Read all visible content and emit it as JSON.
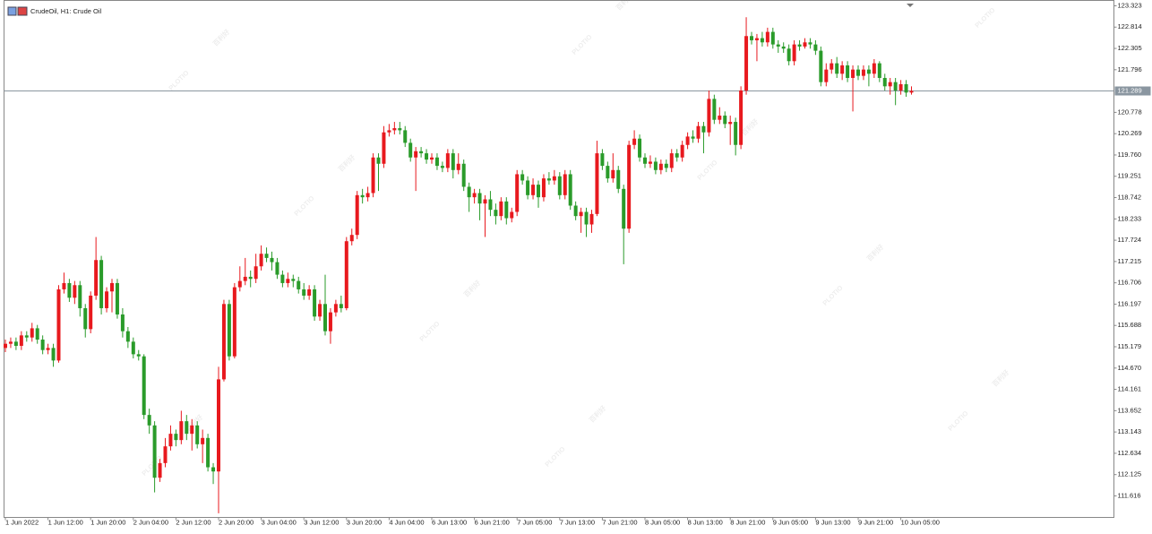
{
  "chart_data": {
    "type": "candlestick",
    "title": "CrudeOil, H1:  Crude Oil",
    "watermark": [
      "PLOTIO",
      "百利好"
    ],
    "x": [
      "1 Jun 2022",
      null,
      null,
      null,
      null,
      null,
      null,
      null,
      "1 Jun 12:00",
      null,
      null,
      null,
      null,
      null,
      null,
      null,
      "1 Jun 20:00",
      null,
      null,
      null,
      null,
      null,
      null,
      null,
      "2 Jun 04:00",
      null,
      null,
      null,
      null,
      null,
      null,
      null,
      "2 Jun 12:00",
      null,
      null,
      null,
      null,
      null,
      null,
      null,
      "2 Jun 20:00",
      null,
      null,
      null,
      null,
      null,
      null,
      null,
      "3 Jun 04:00",
      null,
      null,
      null,
      null,
      null,
      null,
      null,
      "3 Jun 12:00",
      null,
      null,
      null,
      null,
      null,
      null,
      null,
      "3 Jun 20:00",
      null,
      null,
      null,
      null,
      null,
      null,
      null,
      "4 Jun 04:00",
      null,
      null,
      null,
      null,
      null,
      null,
      null,
      "6 Jun 13:00",
      null,
      null,
      null,
      null,
      null,
      null,
      null,
      "6 Jun 21:00",
      null,
      null,
      null,
      null,
      null,
      null,
      null,
      "7 Jun 05:00",
      null,
      null,
      null,
      null,
      null,
      null,
      null,
      "7 Jun 13:00",
      null,
      null,
      null,
      null,
      null,
      null,
      null,
      "7 Jun 21:00",
      null,
      null,
      null,
      null,
      null,
      null,
      null,
      "8 Jun 05:00",
      null,
      null,
      null,
      null,
      null,
      null,
      null,
      "8 Jun 13:00",
      null,
      null,
      null,
      null,
      null,
      null,
      null,
      "8 Jun 21:00",
      null,
      null,
      null,
      null,
      null,
      null,
      null,
      "9 Jun 05:00",
      null,
      null,
      null,
      null,
      null,
      null,
      null,
      "9 Jun 13:00",
      null,
      null,
      null,
      null,
      null,
      null,
      null,
      "9 Jun 21:00",
      null,
      null,
      null,
      null,
      null,
      null,
      null,
      "10 Jun 05:00",
      null,
      null
    ],
    "open": [
      115.15,
      115.25,
      115.3,
      115.2,
      115.45,
      115.4,
      115.62,
      115.35,
      115.1,
      115.15,
      114.85,
      116.55,
      116.7,
      116.35,
      116.65,
      116.1,
      115.6,
      116.4,
      117.25,
      116.1,
      116.5,
      116.7,
      115.95,
      115.55,
      115.3,
      115.0,
      114.95,
      113.55,
      113.3,
      112.05,
      112.4,
      112.8,
      113.1,
      112.95,
      113.4,
      113.1,
      113.3,
      112.85,
      113.0,
      112.3,
      112.2,
      114.4,
      116.2,
      114.95,
      116.6,
      116.75,
      116.85,
      116.8,
      117.1,
      117.4,
      117.3,
      117.2,
      116.9,
      116.7,
      116.8,
      116.75,
      116.55,
      116.4,
      116.55,
      115.9,
      116.2,
      115.55,
      116.0,
      116.2,
      116.1,
      117.7,
      117.85,
      118.8,
      118.75,
      118.85,
      119.7,
      119.55,
      120.3,
      120.35,
      120.4,
      120.35,
      120.05,
      119.7,
      119.85,
      119.8,
      119.65,
      119.7,
      119.5,
      119.45,
      119.8,
      119.4,
      119.55,
      119.0,
      118.75,
      118.85,
      118.6,
      118.7,
      118.45,
      118.3,
      118.65,
      118.25,
      118.4,
      119.3,
      119.15,
      118.8,
      119.05,
      118.75,
      119.2,
      119.15,
      119.25,
      118.8,
      119.3,
      118.55,
      118.3,
      118.4,
      118.1,
      118.35,
      119.8,
      119.5,
      119.2,
      119.4,
      118.95,
      118.0,
      120.0,
      120.15,
      119.7,
      119.55,
      119.6,
      119.4,
      119.55,
      119.45,
      119.8,
      119.7,
      120.0,
      120.2,
      120.15,
      120.45,
      120.3,
      121.1,
      120.6,
      120.7,
      120.5,
      120.55,
      120.0,
      121.3,
      122.6,
      122.5,
      122.55,
      122.45,
      122.7,
      122.4,
      122.35,
      122.3,
      122.0,
      122.4,
      122.35,
      122.45,
      122.4,
      122.25,
      121.5,
      121.8,
      121.95,
      121.7,
      121.9,
      121.6,
      121.8,
      121.65,
      121.8,
      121.7,
      121.95,
      121.6,
      121.4,
      121.5,
      121.3,
      121.45,
      121.25
    ],
    "high": [
      115.35,
      115.4,
      115.4,
      115.55,
      115.55,
      115.75,
      115.7,
      115.45,
      115.25,
      115.25,
      116.65,
      116.95,
      116.8,
      116.75,
      116.75,
      116.2,
      116.5,
      117.8,
      117.35,
      116.6,
      116.8,
      116.8,
      116.1,
      115.65,
      115.4,
      115.1,
      115.0,
      113.7,
      113.4,
      112.5,
      113.0,
      113.3,
      113.2,
      113.65,
      113.55,
      113.45,
      113.4,
      113.2,
      113.1,
      112.4,
      114.7,
      116.3,
      116.3,
      116.7,
      117.1,
      117.3,
      117.0,
      117.4,
      117.6,
      117.55,
      117.45,
      117.3,
      117.0,
      116.95,
      116.9,
      116.85,
      116.7,
      116.65,
      116.65,
      116.3,
      116.9,
      116.1,
      116.3,
      116.4,
      117.8,
      118.0,
      118.9,
      118.95,
      119.0,
      119.8,
      119.8,
      120.45,
      120.5,
      120.55,
      120.55,
      120.45,
      120.15,
      119.95,
      119.95,
      119.9,
      119.8,
      119.8,
      119.6,
      119.9,
      119.9,
      119.8,
      119.65,
      119.1,
      118.95,
      118.95,
      118.8,
      118.9,
      118.6,
      118.75,
      118.75,
      118.5,
      119.4,
      119.4,
      119.25,
      119.2,
      119.15,
      119.3,
      119.35,
      119.4,
      119.35,
      119.4,
      119.4,
      118.65,
      118.5,
      118.5,
      118.45,
      120.1,
      119.9,
      119.6,
      119.8,
      119.5,
      119.05,
      120.1,
      120.35,
      120.25,
      119.8,
      119.75,
      119.7,
      119.65,
      119.65,
      119.9,
      119.9,
      120.1,
      120.3,
      120.35,
      120.55,
      120.55,
      121.3,
      121.2,
      120.9,
      120.8,
      120.7,
      120.65,
      121.4,
      123.05,
      122.7,
      122.65,
      122.7,
      122.8,
      122.8,
      122.5,
      122.45,
      122.4,
      122.5,
      122.5,
      122.55,
      122.55,
      122.5,
      122.35,
      121.95,
      122.05,
      122.1,
      122.0,
      122.0,
      121.9,
      121.9,
      121.9,
      121.9,
      122.05,
      122.0,
      121.7,
      121.6,
      121.6,
      121.55,
      121.55,
      121.4
    ],
    "low": [
      115.05,
      115.15,
      115.1,
      115.1,
      115.3,
      115.3,
      115.25,
      115.0,
      115.0,
      114.7,
      114.8,
      116.45,
      116.25,
      116.2,
      115.9,
      115.4,
      115.5,
      116.3,
      115.95,
      116.0,
      116.0,
      115.85,
      115.4,
      115.15,
      114.9,
      114.85,
      113.45,
      113.1,
      111.7,
      111.95,
      112.3,
      112.7,
      112.8,
      112.85,
      112.95,
      112.7,
      112.75,
      112.4,
      112.2,
      111.9,
      111.2,
      114.35,
      114.85,
      114.9,
      116.5,
      116.65,
      116.6,
      116.7,
      117.0,
      117.2,
      117.0,
      116.8,
      116.6,
      116.6,
      116.6,
      116.45,
      116.3,
      116.3,
      115.8,
      115.8,
      115.45,
      115.25,
      115.9,
      116.0,
      116.05,
      117.6,
      117.75,
      118.6,
      118.65,
      118.75,
      118.9,
      119.45,
      120.2,
      120.25,
      120.25,
      119.95,
      119.6,
      118.9,
      119.7,
      119.55,
      119.55,
      119.4,
      119.35,
      119.35,
      119.2,
      119.3,
      118.9,
      118.4,
      118.6,
      118.2,
      117.8,
      118.3,
      118.1,
      118.2,
      118.1,
      118.15,
      118.3,
      119.05,
      118.7,
      118.7,
      118.5,
      118.65,
      119.05,
      119.05,
      118.7,
      118.7,
      118.45,
      118.2,
      117.9,
      117.8,
      117.9,
      118.3,
      119.4,
      119.1,
      119.1,
      118.85,
      117.15,
      117.9,
      119.9,
      119.6,
      119.45,
      119.45,
      119.3,
      119.3,
      119.35,
      119.35,
      119.6,
      119.6,
      119.9,
      120.05,
      120.05,
      119.8,
      120.2,
      120.5,
      120.5,
      120.4,
      120.0,
      119.75,
      119.9,
      121.2,
      122.4,
      122.0,
      122.35,
      122.35,
      122.3,
      122.2,
      122.2,
      121.9,
      121.9,
      122.25,
      122.3,
      122.3,
      122.15,
      121.4,
      121.4,
      121.7,
      121.6,
      121.55,
      121.5,
      120.8,
      121.55,
      121.55,
      121.4,
      121.6,
      121.5,
      121.3,
      121.2,
      120.95,
      121.2,
      121.15,
      121.2
    ],
    "close": [
      115.25,
      115.3,
      115.2,
      115.45,
      115.4,
      115.62,
      115.35,
      115.1,
      115.15,
      114.85,
      116.55,
      116.7,
      116.35,
      116.65,
      116.1,
      115.6,
      116.4,
      117.25,
      116.1,
      116.5,
      116.7,
      115.95,
      115.55,
      115.3,
      115.0,
      114.95,
      113.55,
      113.3,
      112.05,
      112.4,
      112.8,
      113.1,
      112.95,
      113.4,
      113.1,
      113.3,
      112.85,
      113.0,
      112.3,
      112.2,
      114.4,
      116.2,
      114.95,
      116.6,
      116.75,
      116.85,
      116.8,
      117.1,
      117.4,
      117.3,
      117.2,
      116.9,
      116.7,
      116.8,
      116.75,
      116.55,
      116.4,
      116.55,
      115.9,
      116.2,
      115.55,
      116.0,
      116.2,
      116.1,
      117.7,
      117.85,
      118.8,
      118.75,
      118.85,
      119.7,
      119.55,
      120.3,
      120.35,
      120.4,
      120.35,
      120.05,
      119.7,
      119.85,
      119.8,
      119.65,
      119.7,
      119.5,
      119.45,
      119.8,
      119.4,
      119.55,
      119.0,
      118.75,
      118.85,
      118.6,
      118.7,
      118.45,
      118.3,
      118.65,
      118.25,
      118.4,
      119.3,
      119.15,
      118.8,
      119.05,
      118.75,
      119.2,
      119.15,
      119.25,
      118.8,
      119.3,
      118.55,
      118.3,
      118.4,
      118.1,
      118.35,
      119.8,
      119.5,
      119.2,
      119.4,
      118.95,
      118.0,
      120.0,
      120.15,
      119.7,
      119.55,
      119.6,
      119.4,
      119.55,
      119.45,
      119.8,
      119.7,
      120.0,
      120.2,
      120.15,
      120.45,
      120.3,
      121.1,
      120.6,
      120.7,
      120.5,
      120.55,
      120.0,
      121.3,
      122.6,
      122.5,
      122.55,
      122.45,
      122.7,
      122.4,
      122.35,
      122.3,
      122.0,
      122.4,
      122.35,
      122.45,
      122.4,
      122.25,
      121.5,
      121.8,
      121.95,
      121.7,
      121.9,
      121.6,
      121.8,
      121.65,
      121.8,
      121.7,
      121.95,
      121.6,
      121.4,
      121.5,
      121.3,
      121.45,
      121.25,
      121.29
    ],
    "up_color": "#e8191e",
    "down_color": "#2a9b2a",
    "last_price": 121.289,
    "ylim": [
      111.102,
      123.451
    ],
    "yticks": [
      111.616,
      112.125,
      112.634,
      113.143,
      113.652,
      114.161,
      {
        "value": 114.67,
        "label": "114.670"
      },
      115.179,
      115.688,
      116.197,
      116.706,
      117.215,
      117.724,
      118.233,
      118.742,
      119.251,
      {
        "value": 119.76,
        "label": "119.760"
      },
      120.269,
      120.778,
      121.796,
      122.305,
      122.814,
      123.323
    ],
    "grid": false
  }
}
